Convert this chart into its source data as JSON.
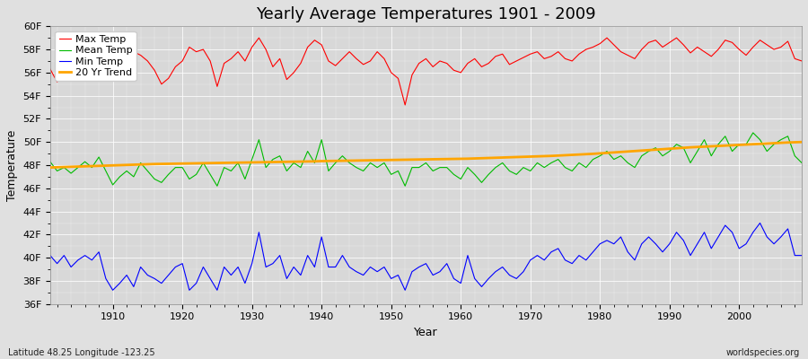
{
  "title": "Yearly Average Temperatures 1901 - 2009",
  "xlabel": "Year",
  "ylabel": "Temperature",
  "subtitle_left": "Latitude 48.25 Longitude -123.25",
  "subtitle_right": "worldspecies.org",
  "years": [
    1901,
    1902,
    1903,
    1904,
    1905,
    1906,
    1907,
    1908,
    1909,
    1910,
    1911,
    1912,
    1913,
    1914,
    1915,
    1916,
    1917,
    1918,
    1919,
    1920,
    1921,
    1922,
    1923,
    1924,
    1925,
    1926,
    1927,
    1928,
    1929,
    1930,
    1931,
    1932,
    1933,
    1934,
    1935,
    1936,
    1937,
    1938,
    1939,
    1940,
    1941,
    1942,
    1943,
    1944,
    1945,
    1946,
    1947,
    1948,
    1949,
    1950,
    1951,
    1952,
    1953,
    1954,
    1955,
    1956,
    1957,
    1958,
    1959,
    1960,
    1961,
    1962,
    1963,
    1964,
    1965,
    1966,
    1967,
    1968,
    1969,
    1970,
    1971,
    1972,
    1973,
    1974,
    1975,
    1976,
    1977,
    1978,
    1979,
    1980,
    1981,
    1982,
    1983,
    1984,
    1985,
    1986,
    1987,
    1988,
    1989,
    1990,
    1991,
    1992,
    1993,
    1994,
    1995,
    1996,
    1997,
    1998,
    1999,
    2000,
    2001,
    2002,
    2003,
    2004,
    2005,
    2006,
    2007,
    2008,
    2009
  ],
  "max_temp": [
    56.3,
    55.2,
    55.8,
    55.5,
    56.2,
    57.0,
    56.5,
    57.0,
    55.8,
    56.5,
    57.2,
    57.0,
    57.8,
    57.5,
    57.0,
    56.2,
    55.0,
    55.5,
    56.5,
    57.0,
    58.2,
    57.8,
    58.0,
    57.0,
    54.8,
    56.8,
    57.2,
    57.8,
    57.0,
    58.2,
    59.0,
    58.0,
    56.5,
    57.2,
    55.4,
    56.0,
    56.8,
    58.2,
    58.8,
    58.4,
    57.0,
    56.6,
    57.2,
    57.8,
    57.2,
    56.7,
    57.0,
    57.8,
    57.2,
    56.0,
    55.5,
    53.2,
    55.8,
    56.8,
    57.2,
    56.5,
    57.0,
    56.8,
    56.2,
    56.0,
    56.8,
    57.2,
    56.5,
    56.8,
    57.4,
    57.6,
    56.7,
    57.0,
    57.3,
    57.6,
    57.8,
    57.2,
    57.4,
    57.8,
    57.2,
    57.0,
    57.6,
    58.0,
    58.2,
    58.5,
    59.0,
    58.4,
    57.8,
    57.5,
    57.2,
    58.0,
    58.6,
    58.8,
    58.2,
    58.6,
    59.0,
    58.4,
    57.7,
    58.2,
    57.8,
    57.4,
    58.0,
    58.8,
    58.6,
    58.0,
    57.5,
    58.2,
    58.8,
    58.4,
    58.0,
    58.2,
    58.7,
    57.2,
    57.0
  ],
  "mean_temp": [
    48.3,
    47.5,
    47.8,
    47.3,
    47.8,
    48.3,
    47.8,
    48.7,
    47.5,
    46.3,
    47.0,
    47.5,
    47.0,
    48.2,
    47.5,
    46.8,
    46.5,
    47.2,
    47.8,
    47.8,
    46.8,
    47.2,
    48.2,
    47.2,
    46.2,
    47.8,
    47.5,
    48.2,
    46.8,
    48.5,
    50.2,
    47.8,
    48.5,
    48.8,
    47.5,
    48.2,
    47.8,
    49.2,
    48.2,
    50.2,
    47.5,
    48.2,
    48.8,
    48.2,
    47.8,
    47.5,
    48.2,
    47.8,
    48.2,
    47.2,
    47.5,
    46.2,
    47.8,
    47.8,
    48.2,
    47.5,
    47.8,
    47.8,
    47.2,
    46.8,
    47.8,
    47.2,
    46.5,
    47.2,
    47.8,
    48.2,
    47.5,
    47.2,
    47.8,
    47.5,
    48.2,
    47.8,
    48.2,
    48.5,
    47.8,
    47.5,
    48.2,
    47.8,
    48.5,
    48.8,
    49.2,
    48.5,
    48.8,
    48.2,
    47.8,
    48.8,
    49.2,
    49.5,
    48.8,
    49.2,
    49.8,
    49.5,
    48.2,
    49.2,
    50.2,
    48.8,
    49.8,
    50.5,
    49.2,
    49.8,
    49.8,
    50.8,
    50.2,
    49.2,
    49.8,
    50.2,
    50.5,
    48.8,
    48.2
  ],
  "min_temp": [
    40.2,
    39.5,
    40.2,
    39.2,
    39.8,
    40.2,
    39.8,
    40.5,
    38.2,
    37.2,
    37.8,
    38.5,
    37.5,
    39.2,
    38.5,
    38.2,
    37.8,
    38.5,
    39.2,
    39.5,
    37.2,
    37.8,
    39.2,
    38.2,
    37.2,
    39.2,
    38.5,
    39.2,
    37.8,
    39.5,
    42.2,
    39.2,
    39.5,
    40.2,
    38.2,
    39.2,
    38.5,
    40.2,
    39.2,
    41.8,
    39.2,
    39.2,
    40.2,
    39.2,
    38.8,
    38.5,
    39.2,
    38.8,
    39.2,
    38.2,
    38.5,
    37.2,
    38.8,
    39.2,
    39.5,
    38.5,
    38.8,
    39.5,
    38.2,
    37.8,
    40.2,
    38.2,
    37.5,
    38.2,
    38.8,
    39.2,
    38.5,
    38.2,
    38.8,
    39.8,
    40.2,
    39.8,
    40.5,
    40.8,
    39.8,
    39.5,
    40.2,
    39.8,
    40.5,
    41.2,
    41.5,
    41.2,
    41.8,
    40.5,
    39.8,
    41.2,
    41.8,
    41.2,
    40.5,
    41.2,
    42.2,
    41.5,
    40.2,
    41.2,
    42.2,
    40.8,
    41.8,
    42.8,
    42.2,
    40.8,
    41.2,
    42.2,
    43.0,
    41.8,
    41.2,
    41.8,
    42.5,
    40.2,
    40.2
  ],
  "trend": [
    47.8,
    47.82,
    47.84,
    47.86,
    47.88,
    47.9,
    47.92,
    47.94,
    47.96,
    47.98,
    48.0,
    48.02,
    48.04,
    48.06,
    48.08,
    48.1,
    48.11,
    48.12,
    48.13,
    48.14,
    48.15,
    48.16,
    48.17,
    48.18,
    48.19,
    48.2,
    48.21,
    48.22,
    48.23,
    48.24,
    48.25,
    48.26,
    48.27,
    48.28,
    48.29,
    48.3,
    48.31,
    48.32,
    48.33,
    48.35,
    48.36,
    48.37,
    48.38,
    48.39,
    48.4,
    48.41,
    48.42,
    48.43,
    48.44,
    48.45,
    48.46,
    48.47,
    48.48,
    48.49,
    48.5,
    48.51,
    48.52,
    48.53,
    48.54,
    48.55,
    48.56,
    48.58,
    48.6,
    48.62,
    48.64,
    48.66,
    48.68,
    48.7,
    48.72,
    48.74,
    48.76,
    48.78,
    48.8,
    48.83,
    48.86,
    48.89,
    48.92,
    48.95,
    48.98,
    49.02,
    49.06,
    49.1,
    49.14,
    49.18,
    49.22,
    49.26,
    49.3,
    49.34,
    49.38,
    49.42,
    49.46,
    49.5,
    49.54,
    49.57,
    49.6,
    49.63,
    49.66,
    49.69,
    49.72,
    49.75,
    49.78,
    49.81,
    49.84,
    49.87,
    49.9,
    49.93,
    49.96,
    49.98,
    50.0
  ],
  "max_color": "#ff0000",
  "mean_color": "#00bb00",
  "min_color": "#0000ff",
  "trend_color": "#ffa500",
  "bg_color": "#e0e0e0",
  "plot_bg": "#d8d8d8",
  "ylim": [
    36,
    60
  ],
  "yticks": [
    36,
    38,
    40,
    42,
    44,
    46,
    48,
    50,
    52,
    54,
    56,
    58,
    60
  ],
  "ytick_labels": [
    "36F",
    "38F",
    "40F",
    "42F",
    "44F",
    "46F",
    "48F",
    "50F",
    "52F",
    "54F",
    "56F",
    "58F",
    "60F"
  ],
  "xlim": [
    1901,
    2009
  ],
  "xticks": [
    1910,
    1920,
    1930,
    1940,
    1950,
    1960,
    1970,
    1980,
    1990,
    2000
  ],
  "title_fontsize": 13,
  "axis_label_fontsize": 9,
  "tick_fontsize": 8,
  "legend_fontsize": 8
}
